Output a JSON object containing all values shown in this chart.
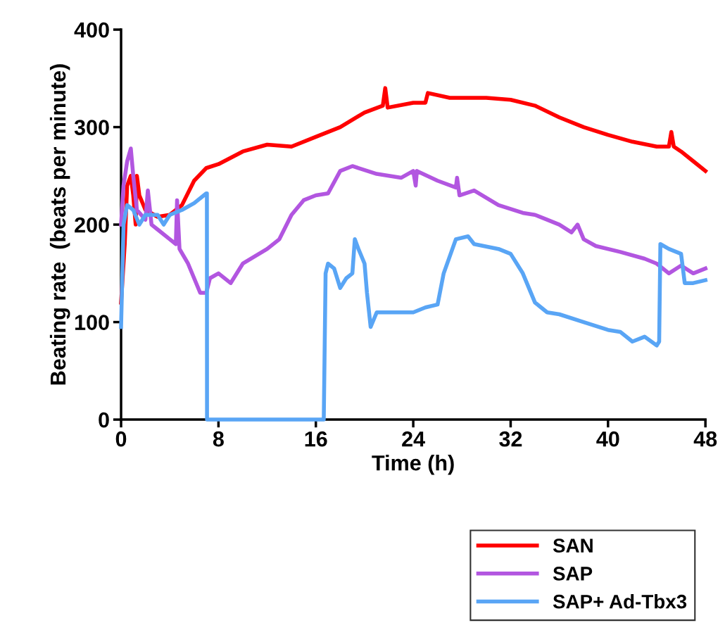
{
  "chart_data": {
    "type": "line",
    "xlabel": "Time (h)",
    "ylabel": "Beating rate  (beats per minute)",
    "xlim": [
      0,
      48
    ],
    "xticks": [
      0,
      8,
      16,
      24,
      32,
      40,
      48
    ],
    "ylim": [
      0,
      400
    ],
    "yticks": [
      0,
      100,
      200,
      300,
      400
    ],
    "grid": false,
    "legend": "bottom right",
    "marker": "none",
    "line_style": "solid",
    "series": [
      {
        "name": "SAN",
        "color": "#ff0000",
        "x": [
          0,
          0.3,
          0.5,
          0.8,
          1,
          1.2,
          1.3,
          1.5,
          2,
          3,
          4,
          5,
          6,
          7,
          8,
          10,
          12,
          14,
          16,
          18,
          20,
          21.5,
          21.7,
          21.9,
          24,
          25,
          25.2,
          27,
          30,
          32,
          34,
          36,
          38,
          40,
          42,
          44,
          45,
          45.2,
          45.4,
          46,
          47,
          48
        ],
        "values": [
          120,
          180,
          240,
          250,
          230,
          200,
          250,
          230,
          215,
          208,
          210,
          220,
          245,
          258,
          262,
          275,
          282,
          280,
          290,
          300,
          315,
          322,
          340,
          320,
          325,
          325,
          335,
          330,
          330,
          328,
          322,
          310,
          300,
          292,
          285,
          280,
          280,
          295,
          280,
          275,
          265,
          255
        ]
      },
      {
        "name": "SAP",
        "color": "#b256e0",
        "x": [
          0,
          0.2,
          0.5,
          0.8,
          1,
          1.3,
          2,
          2.2,
          2.5,
          3,
          4,
          4.5,
          4.6,
          4.8,
          5.5,
          6.5,
          7,
          7.3,
          8,
          9,
          10,
          12,
          13,
          14,
          15,
          16,
          17,
          18,
          19,
          21,
          23,
          24,
          24.2,
          24.3,
          26,
          27.5,
          27.6,
          27.8,
          29,
          31,
          33,
          34,
          35,
          36,
          37,
          37.5,
          38,
          39,
          41,
          43,
          44,
          45,
          46,
          47,
          48
        ],
        "values": [
          200,
          240,
          265,
          278,
          250,
          215,
          205,
          235,
          200,
          195,
          185,
          180,
          225,
          175,
          160,
          130,
          130,
          145,
          150,
          140,
          160,
          175,
          185,
          210,
          225,
          230,
          232,
          255,
          260,
          252,
          248,
          255,
          240,
          255,
          245,
          238,
          248,
          230,
          235,
          220,
          212,
          210,
          205,
          200,
          192,
          200,
          185,
          178,
          172,
          165,
          160,
          150,
          158,
          150,
          155
        ]
      },
      {
        "name": "SAP+ Ad-Tbx3",
        "color": "#59a5f5",
        "x": [
          0,
          0.2,
          0.5,
          1,
          1.5,
          2,
          3,
          3.5,
          4,
          5,
          6,
          7,
          7.05,
          7.06,
          16.65,
          16.8,
          17,
          17.5,
          18,
          18.5,
          19,
          19.2,
          19.5,
          20,
          20.2,
          20.5,
          21,
          22,
          24,
          25,
          26,
          26.5,
          27.5,
          28.5,
          29,
          31,
          32,
          33,
          34,
          35,
          36,
          38,
          40,
          41,
          42,
          43,
          44,
          44.2,
          44.3,
          45,
          46,
          46.3,
          47,
          48
        ],
        "values": [
          95,
          200,
          220,
          215,
          200,
          210,
          210,
          200,
          210,
          215,
          222,
          232,
          232,
          0,
          0,
          150,
          160,
          155,
          135,
          145,
          150,
          185,
          175,
          160,
          130,
          95,
          110,
          110,
          110,
          115,
          118,
          150,
          185,
          188,
          180,
          175,
          170,
          150,
          120,
          110,
          108,
          100,
          92,
          90,
          80,
          85,
          76,
          80,
          180,
          175,
          170,
          140,
          140,
          143
        ]
      }
    ]
  }
}
